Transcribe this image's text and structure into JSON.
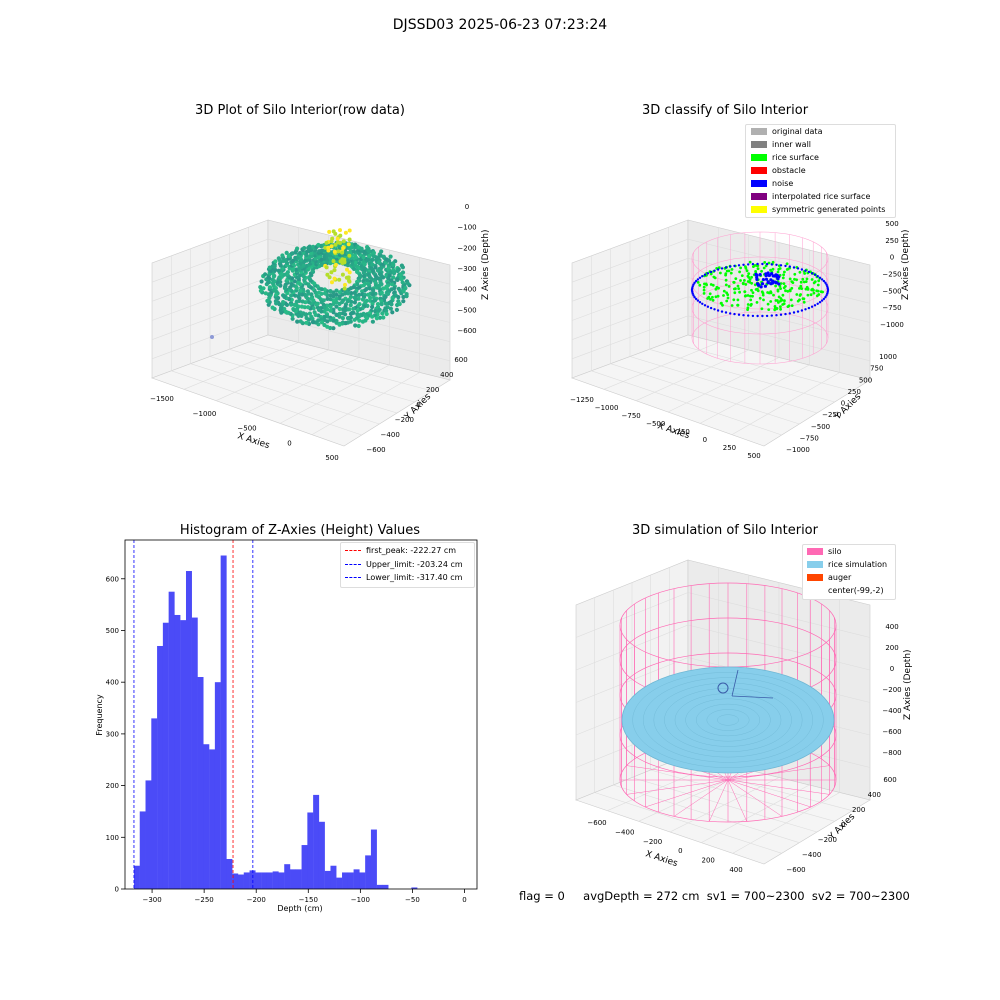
{
  "figure_title": "DJSSD03 2025-06-23 07:23:24",
  "footer": {
    "flag": "flag = 0",
    "stats": "avgDepth = 272 cm  sv1 = 700~2300  sv2 = 700~2300"
  },
  "colors": {
    "histogram_bar": "#4b4bf7",
    "first_peak_line": "#ff0000",
    "limit_lines": "#0000ff",
    "silo_wire": "#ff69b4",
    "rice_simulation": "#87ceeb",
    "auger": "#ff4500",
    "rice_surface": "#00ff00",
    "noise": "#0000ff"
  },
  "chart_data": [
    {
      "type": "scatter",
      "panel": "3d-raw",
      "title": "3D Plot of Silo Interior(row data)",
      "xlabel": "X Axies",
      "ylabel": "Y Axies",
      "zlabel": "Z Axies (Depth)",
      "x_ticks": [
        "−1500",
        "−1000",
        "−500",
        "0",
        "500"
      ],
      "y_ticks": [
        "−600",
        "−400",
        "−200",
        "0",
        "200",
        "400",
        "600"
      ],
      "z_ticks": [
        "0",
        "−100",
        "−200",
        "−300",
        "−400",
        "−500",
        "−600"
      ],
      "colormap": "viridis"
    },
    {
      "type": "scatter",
      "panel": "3d-classify",
      "title": "3D classify of Silo Interior",
      "xlabel": "X Axies",
      "ylabel": "Y Axies",
      "zlabel": "Z Axies (Depth)",
      "x_ticks": [
        "−1250",
        "−1000",
        "−750",
        "−500",
        "−250",
        "0",
        "250",
        "500"
      ],
      "y_ticks": [
        "−1000",
        "−750",
        "−500",
        "−250",
        "0",
        "250",
        "500",
        "750",
        "1000"
      ],
      "z_ticks": [
        "500",
        "250",
        "0",
        "−250",
        "−500",
        "−750",
        "−1000"
      ],
      "legend": [
        {
          "label": "original data",
          "color": "#b0b0b0"
        },
        {
          "label": "inner wall",
          "color": "#808080"
        },
        {
          "label": "rice surface",
          "color": "#00ff00"
        },
        {
          "label": "obstacle",
          "color": "#ff0000"
        },
        {
          "label": "noise",
          "color": "#0000ff"
        },
        {
          "label": "interpolated rice surface",
          "color": "#800080"
        },
        {
          "label": "symmetric generated points",
          "color": "#ffff00"
        }
      ]
    },
    {
      "type": "bar",
      "panel": "histogram",
      "title": "Histogram of Z-Axies (Height) Values",
      "xlabel": "Depth (cm)",
      "ylabel": "Frequency",
      "xlim": [
        -326,
        12
      ],
      "ylim": [
        0,
        675
      ],
      "x_ticks": [
        -300,
        -250,
        -200,
        -150,
        -100,
        -50,
        0
      ],
      "x_tick_labels": [
        "−300",
        "−250",
        "−200",
        "−150",
        "−100",
        "−50",
        "0"
      ],
      "y_ticks": [
        0,
        100,
        200,
        300,
        400,
        500,
        600
      ],
      "bin_width": 5.55,
      "bin_start": -317.4,
      "values": [
        45,
        150,
        210,
        330,
        470,
        515,
        575,
        530,
        520,
        615,
        525,
        410,
        280,
        270,
        400,
        645,
        58,
        30,
        28,
        32,
        36,
        32,
        32,
        32,
        34,
        32,
        48,
        38,
        38,
        85,
        148,
        182,
        130,
        35,
        45,
        22,
        32,
        32,
        38,
        32,
        65,
        115,
        8,
        8,
        0,
        0,
        0,
        0,
        3,
        0
      ],
      "vlines": [
        {
          "name": "first_peak",
          "label": "first_peak: -222.27 cm",
          "x": -222.27,
          "color": "#ff0000"
        },
        {
          "name": "upper_limit",
          "label": "Upper_limit: -203.24 cm",
          "x": -203.24,
          "color": "#0000ff"
        },
        {
          "name": "lower_limit",
          "label": "Lower_limit: -317.40 cm",
          "x": -317.4,
          "color": "#0000ff"
        }
      ],
      "legend_position": "top-right"
    },
    {
      "type": "scatter",
      "panel": "3d-simulation",
      "title": "3D simulation of Silo Interior",
      "xlabel": "X Axies",
      "ylabel": "Y Axies",
      "zlabel": "Z Axies (Depth)",
      "x_ticks": [
        "−600",
        "−400",
        "−200",
        "0",
        "200",
        "400"
      ],
      "y_ticks": [
        "−600",
        "−400",
        "−200",
        "0",
        "200",
        "400",
        "600"
      ],
      "z_ticks": [
        "400",
        "200",
        "0",
        "−200",
        "−400",
        "−600",
        "−800"
      ],
      "legend": [
        {
          "label": "silo",
          "color": "#ff69b4"
        },
        {
          "label": "rice simulation",
          "color": "#87ceeb"
        },
        {
          "label": "auger",
          "color": "#ff4500"
        },
        {
          "label": "center(-99,-2)",
          "color": ""
        }
      ]
    }
  ]
}
